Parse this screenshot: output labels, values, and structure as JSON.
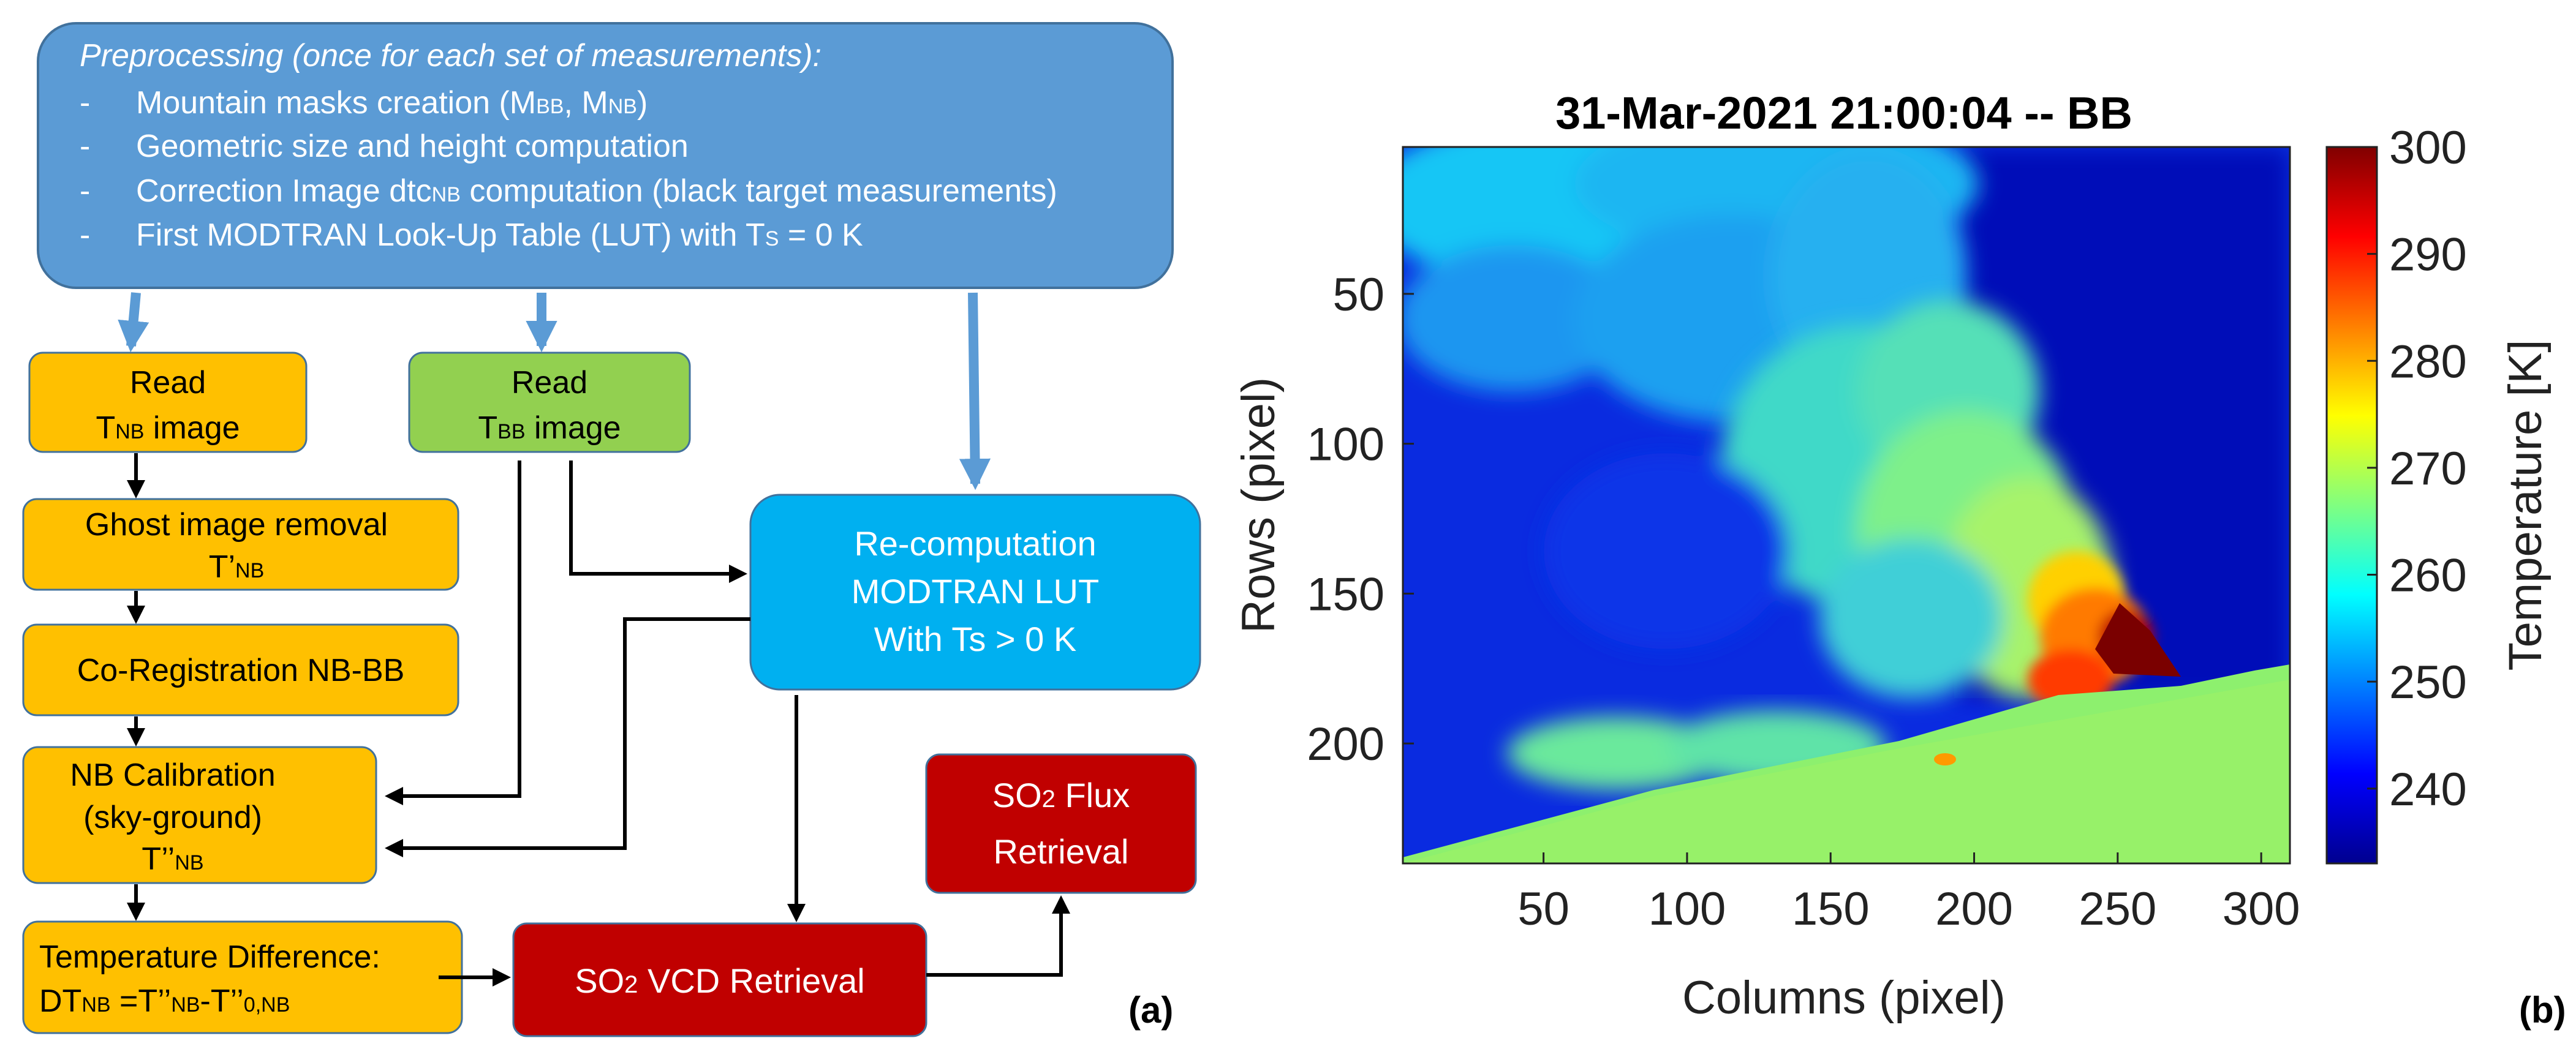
{
  "flowchart": {
    "preprocessing": {
      "title": "Preprocessing (once for each set of measurements):",
      "items": [
        "Mountain masks creation (M",
        "Geometric size and height computation",
        "Correction Image dtc",
        "First MODTRAN Look-Up Table (LUT) with T"
      ],
      "item_tails": {
        "masks_sub1": "BB",
        "masks_sep": ", M",
        "masks_sub2": "NB",
        "masks_close": ")",
        "dtc_sub": "NB",
        "dtc_tail": " computation (black target measurements)",
        "ts_sub": "S",
        "ts_tail": " = 0 K"
      },
      "bullet": "-"
    },
    "read_nb": {
      "line1": "Read",
      "line2_main": "T",
      "line2_sub": "NB",
      "line2_tail": "   image"
    },
    "read_bb": {
      "line1": "Read",
      "line2_main": "T",
      "line2_sub": "BB",
      "line2_tail": " image"
    },
    "ghost": {
      "line1": "Ghost image removal",
      "line2_main": "T’",
      "line2_sub": "NB"
    },
    "coreg": {
      "label": "Co-Registration NB-BB"
    },
    "nbcal": {
      "line1": "NB Calibration",
      "line2": "(sky-ground)",
      "line3_main": "T’’",
      "line3_sub": "NB"
    },
    "tempdiff": {
      "line1": "Temperature Difference:",
      "line2_a": "DT",
      "line2_a_sub": "NB",
      "line2_b": " =T’’",
      "line2_b_sub": "NB",
      "line2_c": "-T’’",
      "line2_c_sub": "0,NB"
    },
    "recomp": {
      "line1": "Re-computation",
      "line2": "MODTRAN LUT",
      "line3": "With Ts > 0 K"
    },
    "so2vcd": {
      "a": "SO",
      "sub": "2",
      "b": " VCD Retrieval"
    },
    "so2flux": {
      "line1_a": "SO",
      "line1_sub": "2",
      "line1_b": " Flux",
      "line2": "Retrieval"
    },
    "panel_label": "(a)"
  },
  "colors": {
    "preprocessing_fill": "#5b9bd5",
    "preprocessing_stroke": "#41719c",
    "orange_fill": "#ffc000",
    "green_fill": "#92d050",
    "cyan_fill": "#00b0f0",
    "red_fill": "#c00000",
    "arrow_blue": "#5b9bd5",
    "box_stroke": "#41719c"
  },
  "chart_data": {
    "type": "heatmap",
    "title": "31-Mar-2021 21:00:04 -- BB",
    "xlabel": "Columns (pixel)",
    "ylabel": "Rows (pixel)",
    "x_ticks": [
      "50",
      "100",
      "150",
      "200",
      "250",
      "300"
    ],
    "y_ticks": [
      "50",
      "100",
      "150",
      "200"
    ],
    "x_tick_values": [
      50,
      100,
      150,
      200,
      250,
      300
    ],
    "y_tick_values": [
      50,
      100,
      150,
      200
    ],
    "xlim": [
      1,
      310
    ],
    "ylim": [
      1,
      240
    ],
    "colorbar_label": "Temperature [K]",
    "colorbar_ticks": [
      "240",
      "250",
      "260",
      "270",
      "280",
      "290",
      "300"
    ],
    "colorbar_tick_values": [
      240,
      250,
      260,
      270,
      280,
      290,
      300
    ],
    "clim": [
      233,
      300
    ],
    "colormap": "jet",
    "panel_label": "(b)"
  }
}
